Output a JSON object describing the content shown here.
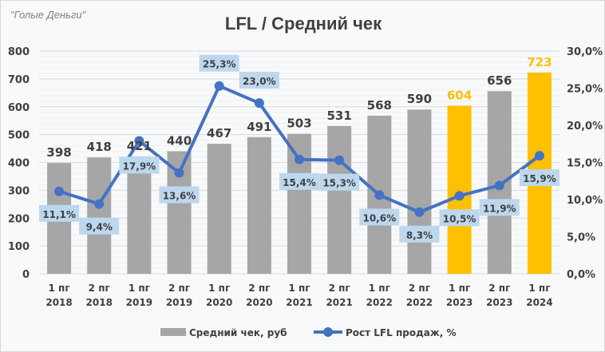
{
  "watermark": "\"Голые Деньги\"",
  "chart_data": {
    "type": "bar+line",
    "title": "LFL / Средний чек",
    "categories": [
      "1 пг\n2018",
      "2 пг\n2018",
      "1 пг\n2019",
      "2 пг\n2019",
      "1 пг\n2020",
      "2 пг\n2020",
      "1 пг\n2021",
      "2 пг\n2021",
      "1 пг\n2022",
      "2 пг\n2022",
      "1 пг\n2023",
      "2 пг\n2023",
      "1 пг\n2024"
    ],
    "series": [
      {
        "name": "Средний чек, руб",
        "type": "bar",
        "axis": "left",
        "values": [
          398,
          418,
          421,
          440,
          467,
          491,
          503,
          531,
          568,
          590,
          604,
          656,
          723
        ],
        "color": "#a6a6a6",
        "highlight_color": "#ffc000",
        "highlight_indices": [
          10,
          12
        ]
      },
      {
        "name": "Рост LFL продаж, %",
        "type": "line",
        "axis": "right",
        "values": [
          11.1,
          9.4,
          17.9,
          13.6,
          25.3,
          23.0,
          15.4,
          15.3,
          10.6,
          8.3,
          10.5,
          11.9,
          15.9
        ],
        "labels": [
          "11,1%",
          "9,4%",
          "17,9%",
          "13,6%",
          "25,3%",
          "23,0%",
          "15,4%",
          "15,3%",
          "10,6%",
          "8,3%",
          "10,5%",
          "11,9%",
          "15,9%"
        ],
        "color": "#4472c4",
        "label_bg": "#bdd7ee"
      }
    ],
    "y_left": {
      "range": [
        0,
        800
      ],
      "ticks": [
        "0",
        "100",
        "200",
        "300",
        "400",
        "500",
        "600",
        "700",
        "800"
      ]
    },
    "y_right": {
      "range": [
        0,
        30
      ],
      "ticks": [
        "0,0%",
        "5,0%",
        "10,0%",
        "15,0%",
        "20,0%",
        "25,0%",
        "30,0%"
      ]
    },
    "grid": true,
    "legend": "bottom"
  }
}
